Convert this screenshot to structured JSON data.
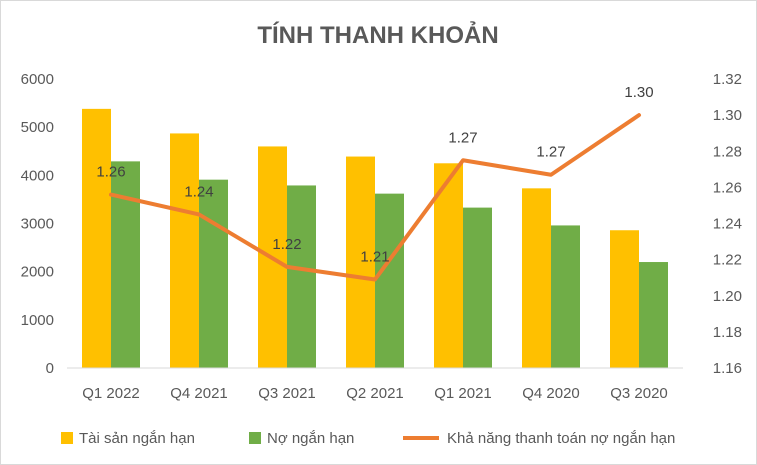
{
  "chart_data": {
    "type": "bar",
    "title": "TÍNH THANH KHOẢN",
    "categories": [
      "Q1 2022",
      "Q4 2021",
      "Q3 2021",
      "Q2 2021",
      "Q1 2021",
      "Q4 2020",
      "Q3 2020"
    ],
    "series": [
      {
        "name": "Tài sản ngắn hạn",
        "type": "bar",
        "axis": "left",
        "color": "#FFC000",
        "values": [
          5380,
          4870,
          4600,
          4390,
          4250,
          3730,
          2860
        ]
      },
      {
        "name": "Nợ ngắn hạn",
        "type": "bar",
        "axis": "left",
        "color": "#70AD47",
        "values": [
          4290,
          3910,
          3790,
          3620,
          3330,
          2960,
          2200
        ]
      },
      {
        "name": "Khả năng thanh toán nợ ngắn hạn",
        "type": "line",
        "axis": "right",
        "color": "#ED7D31",
        "values": [
          1.256,
          1.245,
          1.216,
          1.209,
          1.275,
          1.267,
          1.3
        ],
        "data_labels": [
          "1.26",
          "1.24",
          "1.22",
          "1.21",
          "1.27",
          "1.27",
          "1.30"
        ]
      }
    ],
    "y_left": {
      "min": 0,
      "max": 6000,
      "ticks": [
        "0",
        "1000",
        "2000",
        "3000",
        "4000",
        "5000",
        "6000"
      ]
    },
    "y_right": {
      "min": 1.16,
      "max": 1.32,
      "ticks": [
        "1.16",
        "1.18",
        "1.20",
        "1.22",
        "1.24",
        "1.26",
        "1.28",
        "1.30",
        "1.32"
      ]
    },
    "grid": false,
    "legend_position": "bottom"
  }
}
